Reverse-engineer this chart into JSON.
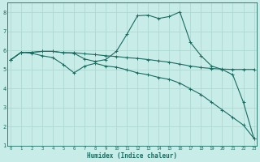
{
  "xlabel": "Humidex (Indice chaleur)",
  "bg_color": "#c8ece8",
  "grid_color": "#afd8d2",
  "line_color": "#1a6b60",
  "x": [
    0,
    1,
    2,
    3,
    4,
    5,
    6,
    7,
    8,
    9,
    10,
    11,
    12,
    13,
    14,
    15,
    16,
    17,
    18,
    19,
    20,
    21,
    22,
    23
  ],
  "line1": [
    5.5,
    5.9,
    5.9,
    5.95,
    5.95,
    5.88,
    5.88,
    5.82,
    5.78,
    5.72,
    5.68,
    5.62,
    5.58,
    5.52,
    5.45,
    5.38,
    5.28,
    5.18,
    5.1,
    5.05,
    5.02,
    5.0,
    5.0,
    5.0
  ],
  "line2": [
    5.5,
    5.9,
    5.9,
    5.95,
    5.95,
    5.88,
    5.85,
    5.55,
    5.42,
    5.52,
    5.95,
    6.85,
    7.82,
    7.85,
    7.68,
    7.78,
    8.02,
    6.42,
    5.72,
    5.18,
    5.0,
    4.72,
    3.28,
    1.38
  ],
  "line3": [
    5.5,
    5.9,
    5.85,
    5.72,
    5.62,
    5.25,
    4.82,
    5.18,
    5.32,
    5.18,
    5.12,
    4.98,
    4.82,
    4.72,
    4.58,
    4.48,
    4.28,
    3.98,
    3.68,
    3.28,
    2.88,
    2.48,
    2.08,
    1.38
  ],
  "ylim": [
    1,
    8.5
  ],
  "yticks": [
    1,
    2,
    3,
    4,
    5,
    6,
    7,
    8
  ],
  "xticks": [
    0,
    1,
    2,
    3,
    4,
    5,
    6,
    7,
    8,
    9,
    10,
    11,
    12,
    13,
    14,
    15,
    16,
    17,
    18,
    19,
    20,
    21,
    22,
    23
  ]
}
